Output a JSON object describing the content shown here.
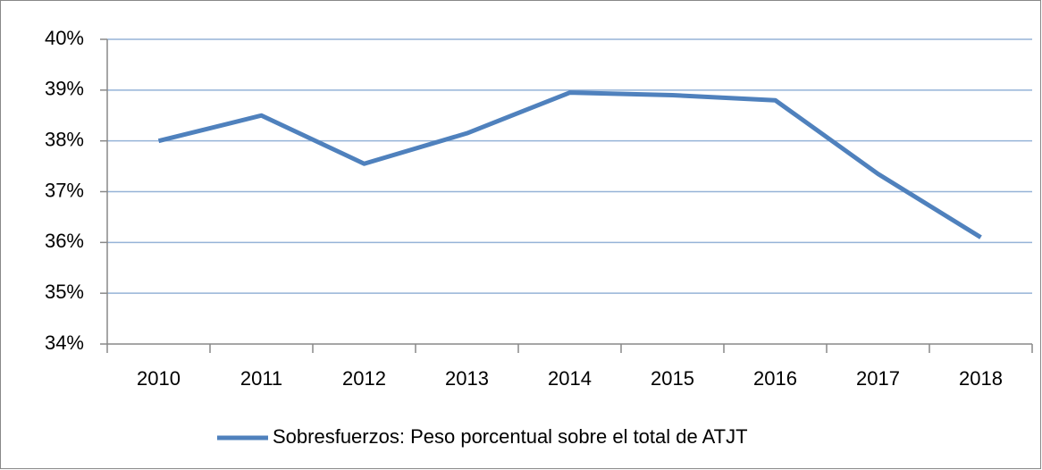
{
  "chart_data": {
    "type": "line",
    "categories": [
      "2010",
      "2011",
      "2012",
      "2013",
      "2014",
      "2015",
      "2016",
      "2017",
      "2018"
    ],
    "series": [
      {
        "name": "Sobresfuerzos: Peso porcentual sobre el total de ATJT",
        "color": "#4f81bd",
        "values": [
          38.0,
          38.5,
          37.55,
          38.15,
          38.95,
          38.9,
          38.8,
          37.35,
          36.1
        ]
      }
    ],
    "ylim": [
      34,
      40
    ],
    "yticks": [
      {
        "value": 34,
        "label": "34%"
      },
      {
        "value": 35,
        "label": "35%"
      },
      {
        "value": 36,
        "label": "36%"
      },
      {
        "value": 37,
        "label": "37%"
      },
      {
        "value": 38,
        "label": "38%"
      },
      {
        "value": 39,
        "label": "39%"
      },
      {
        "value": 40,
        "label": "40%"
      }
    ],
    "grid": true,
    "legend": "bottom"
  }
}
